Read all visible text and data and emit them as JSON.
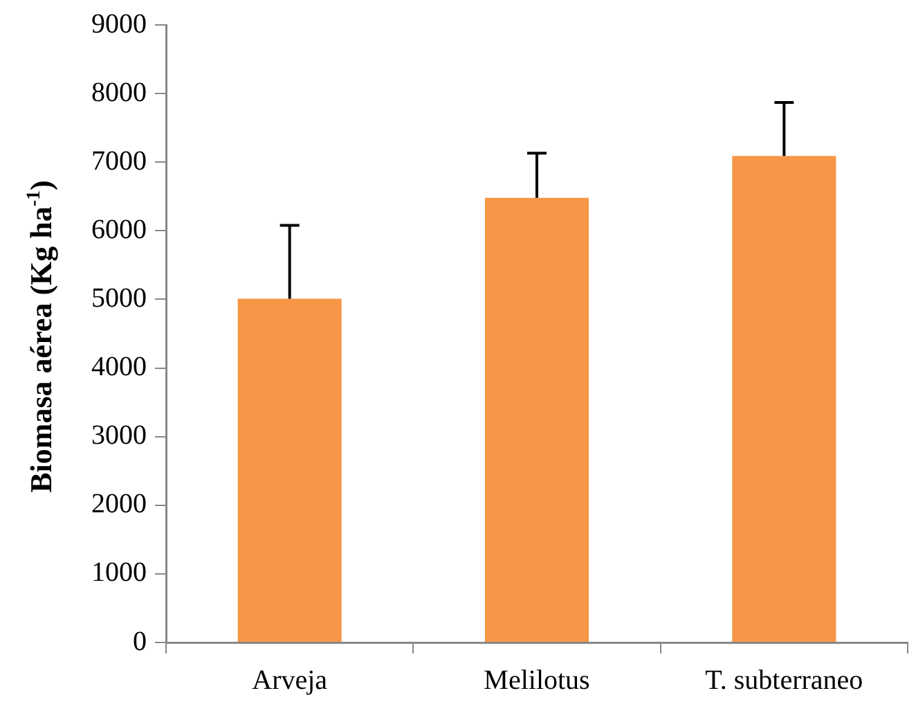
{
  "chart_data": {
    "type": "bar",
    "ylabel": "Biomasa aérea (Kg ha$^{-1}$)",
    "categories": [
      "Arveja",
      "Melilotus",
      "T. subterraneo"
    ],
    "values": [
      5010,
      6480,
      7090
    ],
    "errors": [
      [
        5010,
        6080
      ],
      [
        6480,
        7130
      ],
      [
        7090,
        7870
      ]
    ],
    "color": "#f79646",
    "ylim": [
      0,
      9000
    ],
    "yticks": [
      0,
      1000,
      2000,
      3000,
      4000,
      5000,
      6000,
      7000,
      8000,
      9000
    ],
    "grid": false,
    "legend": false
  }
}
